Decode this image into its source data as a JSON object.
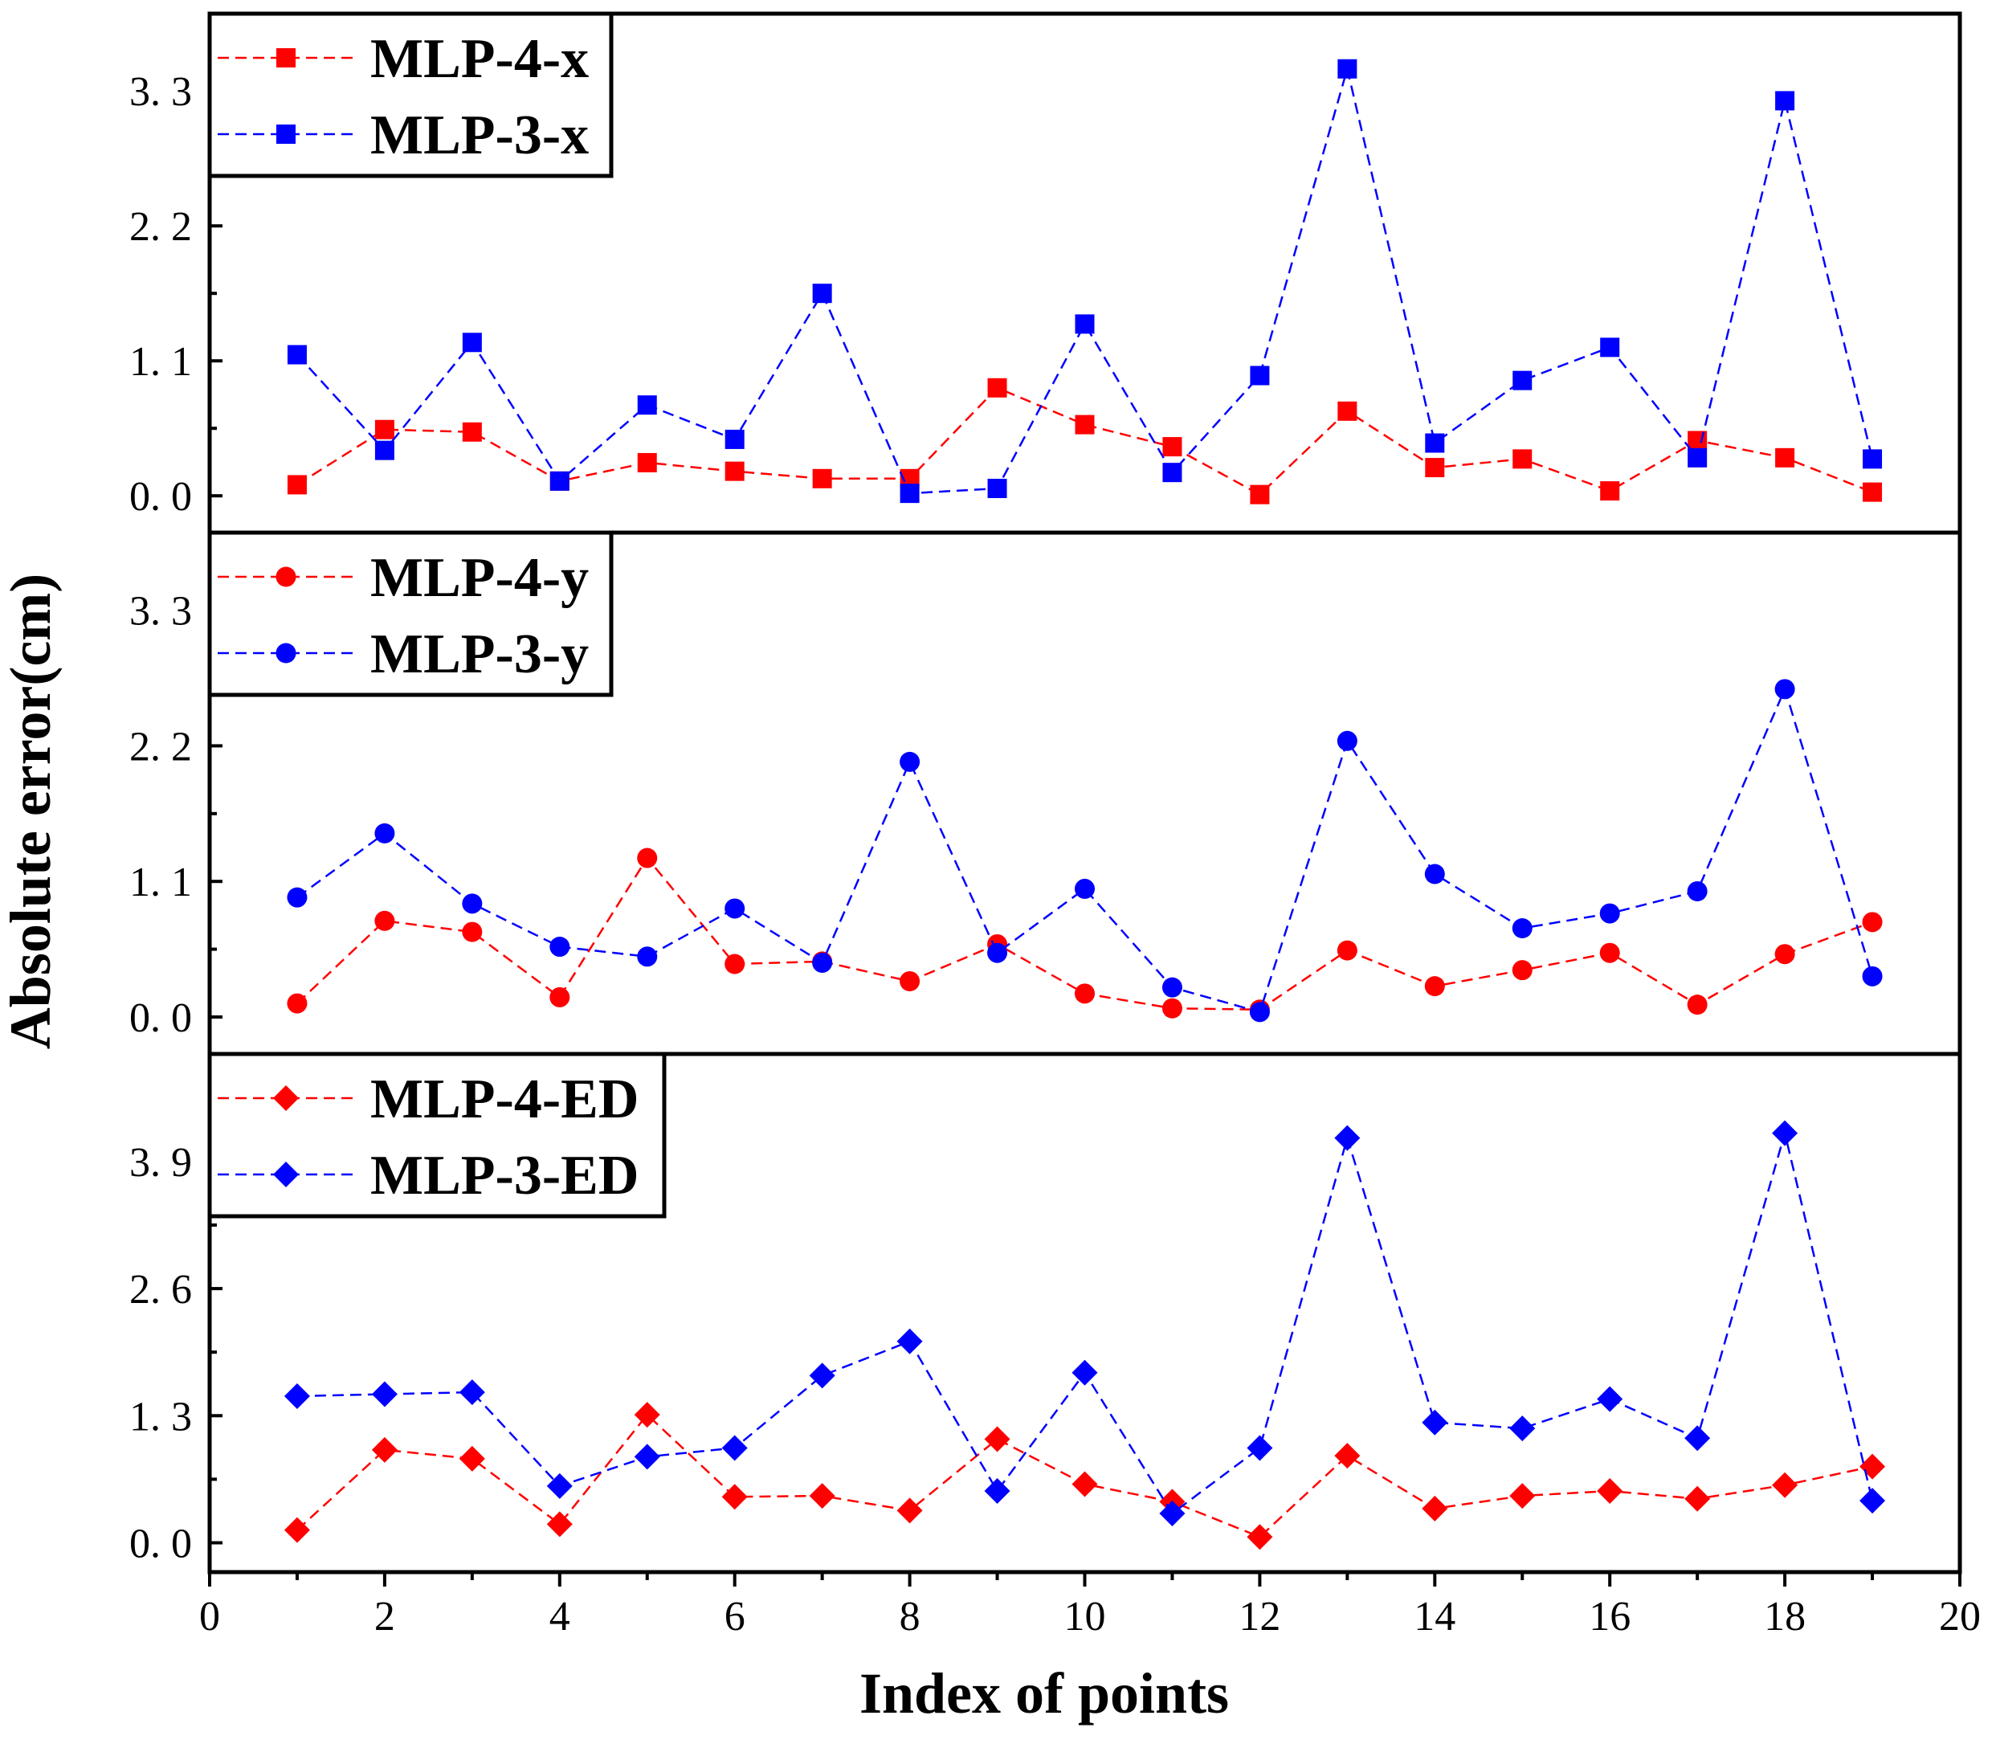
{
  "chart_data": {
    "type": "line",
    "xlabel": "Index of points",
    "ylabel": "Absolute error(cm)",
    "xlim": [
      0,
      20
    ],
    "xticks": [
      0,
      2,
      4,
      6,
      8,
      10,
      12,
      14,
      16,
      18,
      20
    ],
    "x": [
      1,
      2,
      3,
      4,
      5,
      6,
      7,
      8,
      9,
      10,
      11,
      12,
      13,
      14,
      15,
      16,
      17,
      18,
      19
    ],
    "colors": {
      "mlp4": "#ff0000",
      "mlp3": "#0000ff"
    },
    "panels": [
      {
        "marker": "square",
        "ylim": [
          -0.3,
          3.93
        ],
        "yticks": [
          0.0,
          1.1,
          2.2,
          3.3
        ],
        "yticklabels": [
          "0. 0",
          "1. 1",
          "2. 2",
          "3. 3"
        ],
        "series": [
          {
            "name": "MLP-4-x",
            "values": [
              0.09,
              0.54,
              0.52,
              0.12,
              0.27,
              0.2,
              0.14,
              0.14,
              0.88,
              0.58,
              0.4,
              0.01,
              0.69,
              0.23,
              0.3,
              0.04,
              0.45,
              0.31,
              0.03
            ]
          },
          {
            "name": "MLP-3-x",
            "values": [
              1.15,
              0.37,
              1.25,
              0.12,
              0.74,
              0.46,
              1.65,
              0.02,
              0.06,
              1.4,
              0.19,
              0.98,
              3.48,
              0.43,
              0.94,
              1.21,
              0.31,
              3.22,
              0.3
            ]
          }
        ]
      },
      {
        "marker": "circle",
        "ylim": [
          -0.3,
          3.93
        ],
        "yticks": [
          0.0,
          1.1,
          2.2,
          3.3
        ],
        "yticklabels": [
          "0. 0",
          "1. 1",
          "2. 2",
          "3. 3"
        ],
        "series": [
          {
            "name": "MLP-4-y",
            "values": [
              0.11,
              0.78,
              0.69,
              0.16,
              1.29,
              0.43,
              0.45,
              0.29,
              0.59,
              0.19,
              0.07,
              0.06,
              0.54,
              0.25,
              0.38,
              0.52,
              0.1,
              0.51,
              0.77
            ]
          },
          {
            "name": "MLP-3-y",
            "values": [
              0.97,
              1.49,
              0.92,
              0.57,
              0.49,
              0.88,
              0.44,
              2.07,
              0.52,
              1.04,
              0.24,
              0.04,
              2.24,
              1.16,
              0.72,
              0.84,
              1.02,
              2.66,
              0.33
            ]
          }
        ]
      },
      {
        "marker": "diamond",
        "ylim": [
          -0.3,
          5.0
        ],
        "yticks": [
          0.0,
          1.3,
          2.6,
          3.9
        ],
        "yticklabels": [
          "0. 0",
          "1. 3",
          "2. 6",
          "3. 9"
        ],
        "series": [
          {
            "name": "MLP-4-ED",
            "values": [
              0.13,
              0.95,
              0.86,
              0.19,
              1.31,
              0.47,
              0.48,
              0.33,
              1.06,
              0.6,
              0.42,
              0.06,
              0.89,
              0.35,
              0.48,
              0.53,
              0.45,
              0.59,
              0.78
            ]
          },
          {
            "name": "MLP-3-ED",
            "values": [
              1.5,
              1.52,
              1.54,
              0.58,
              0.88,
              0.97,
              1.71,
              2.06,
              0.53,
              1.74,
              0.3,
              0.97,
              4.14,
              1.23,
              1.17,
              1.47,
              1.07,
              4.19,
              0.43
            ]
          }
        ]
      }
    ]
  }
}
